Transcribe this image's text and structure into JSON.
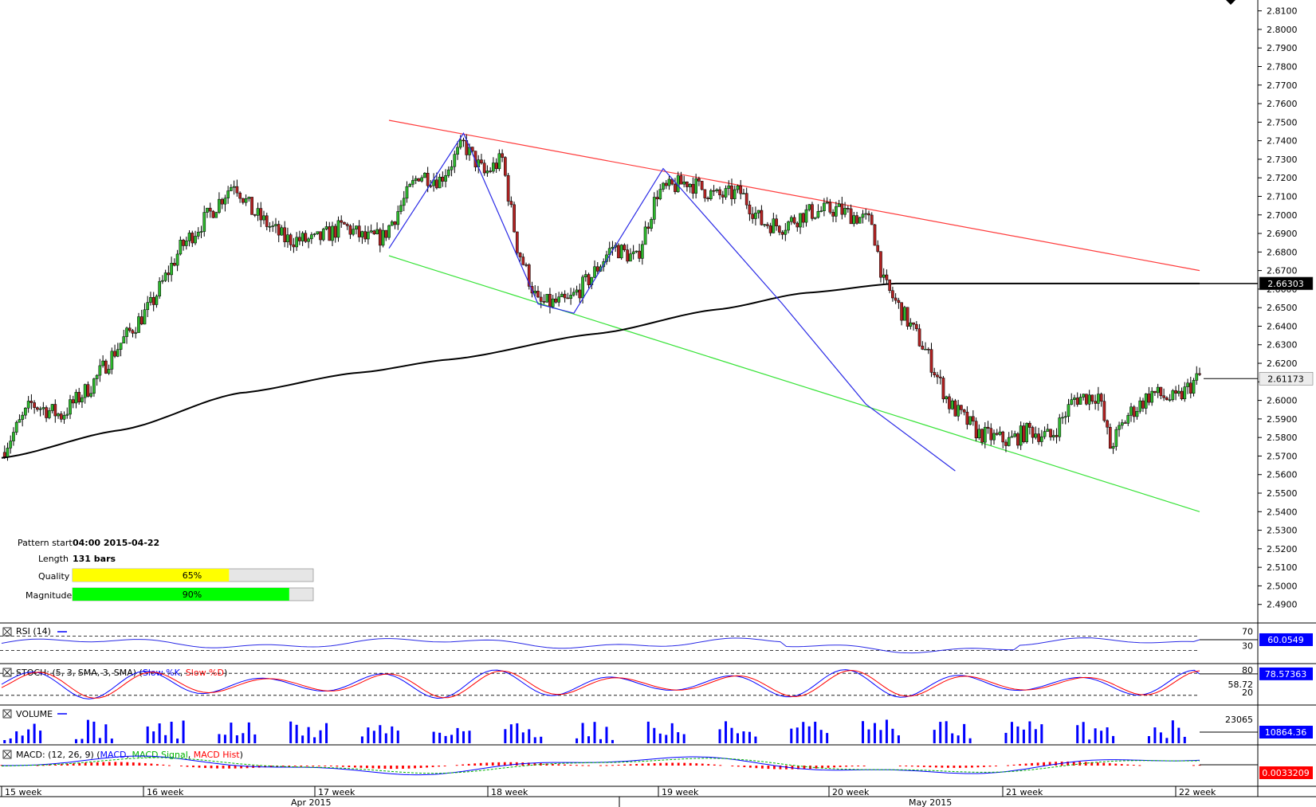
{
  "chart_data": {
    "type": "candlestick",
    "main_axis": {
      "ylim": [
        2.48,
        2.815
      ],
      "tick_step": 0.01,
      "tick_start": 2.49,
      "tick_end": 2.81
    },
    "series_note": "Price candles, black moving average, red upper trendline, green lower trendline, blue zigzag pattern",
    "price_tags": [
      {
        "value": 2.66303,
        "label": "2.66303",
        "style": "dark"
      },
      {
        "value": 2.61173,
        "label": "2.61173",
        "style": "light"
      }
    ],
    "week_labels": [
      "15 week",
      "16 week",
      "17 week",
      "18 week",
      "19 week",
      "20 week",
      "21 week",
      "22 week"
    ],
    "month_labels": [
      "Apr 2015",
      "May 2015"
    ],
    "moving_average": [
      [
        0,
        2.569
      ],
      [
        40,
        2.584
      ],
      [
        80,
        2.604
      ],
      [
        120,
        2.615
      ],
      [
        150,
        2.622
      ],
      [
        200,
        2.636
      ],
      [
        240,
        2.649
      ],
      [
        270,
        2.658
      ],
      [
        300,
        2.663
      ],
      [
        340,
        2.663
      ],
      [
        402,
        2.663
      ]
    ],
    "upper_trendline": [
      [
        130,
        2.751
      ],
      [
        402,
        2.67
      ]
    ],
    "lower_trendline": [
      [
        130,
        2.678
      ],
      [
        402,
        2.54
      ]
    ],
    "zigzag": [
      [
        130,
        2.682
      ],
      [
        155,
        2.744
      ],
      [
        180,
        2.652
      ],
      [
        192,
        2.647
      ],
      [
        222,
        2.725
      ],
      [
        262,
        2.652
      ],
      [
        290,
        2.598
      ],
      [
        320,
        2.562
      ]
    ],
    "candles_anchor": [
      [
        0,
        2.572
      ],
      [
        10,
        2.598
      ],
      [
        20,
        2.592
      ],
      [
        30,
        2.608
      ],
      [
        40,
        2.631
      ],
      [
        50,
        2.651
      ],
      [
        60,
        2.682
      ],
      [
        70,
        2.701
      ],
      [
        78,
        2.718
      ],
      [
        84,
        2.702
      ],
      [
        95,
        2.687
      ],
      [
        105,
        2.686
      ],
      [
        115,
        2.694
      ],
      [
        122,
        2.687
      ],
      [
        128,
        2.688
      ],
      [
        140,
        2.722
      ],
      [
        147,
        2.719
      ],
      [
        155,
        2.738
      ],
      [
        162,
        2.722
      ],
      [
        168,
        2.73
      ],
      [
        173,
        2.683
      ],
      [
        180,
        2.652
      ],
      [
        190,
        2.653
      ],
      [
        198,
        2.667
      ],
      [
        205,
        2.683
      ],
      [
        213,
        2.676
      ],
      [
        220,
        2.712
      ],
      [
        230,
        2.718
      ],
      [
        240,
        2.71
      ],
      [
        248,
        2.712
      ],
      [
        255,
        2.696
      ],
      [
        262,
        2.694
      ],
      [
        270,
        2.701
      ],
      [
        280,
        2.703
      ],
      [
        292,
        2.696
      ],
      [
        296,
        2.663
      ],
      [
        302,
        2.648
      ],
      [
        310,
        2.627
      ],
      [
        318,
        2.598
      ],
      [
        328,
        2.582
      ],
      [
        338,
        2.578
      ],
      [
        345,
        2.584
      ],
      [
        352,
        2.58
      ],
      [
        360,
        2.601
      ],
      [
        368,
        2.603
      ],
      [
        372,
        2.575
      ],
      [
        378,
        2.592
      ],
      [
        386,
        2.604
      ],
      [
        394,
        2.6
      ],
      [
        402,
        2.613
      ]
    ],
    "pattern_info": {
      "pattern_start_label": "Pattern start",
      "pattern_start_value": "04:00 2015-04-22",
      "length_label": "Length",
      "length_value": "131 bars",
      "quality_label": "Quality",
      "quality_value": 65,
      "quality_text": "65%",
      "magnitude_label": "Magnitude",
      "magnitude_value": 90,
      "magnitude_text": "90%"
    },
    "indicators": {
      "rsi": {
        "title": "RSI (14)",
        "levels": [
          {
            "value": 70,
            "label": "70"
          },
          {
            "value": 30,
            "label": "30"
          }
        ],
        "last_value": "60.0549",
        "last": 60.05
      },
      "stoch": {
        "title_prefix": "STOCH: (5, 3, SMA, 3, SMA) (",
        "k_name": "Slow %K",
        "separator": ", ",
        "d_name": "Slow %D",
        "title_suffix": ")",
        "levels": [
          {
            "value": 80,
            "label": "80"
          },
          {
            "value": 20,
            "label": "20"
          }
        ],
        "extra_label": "58.72",
        "last_value": "78.57363",
        "last": 78.57
      },
      "volume": {
        "title": "VOLUME",
        "top_label": "23065",
        "last_value": "10864.36"
      },
      "macd": {
        "title_prefix": "MACD: (12, 26, 9) (",
        "macd_name": "MACD",
        "signal_name": "MACD Signal",
        "hist_name": "MACD Hist",
        "title_suffix": ")",
        "last_value": "0.0033209"
      }
    },
    "colors": {
      "up": "#2db82d",
      "down": "#b22222",
      "ma": "#000000",
      "upper_trend": "#ff3b3b",
      "lower_trend": "#39e339",
      "zigzag": "#2a2ae6",
      "quality": "#ffff00",
      "magnitude": "#00ff00",
      "volume": "#0000ff",
      "tag_blue": "#0000ff",
      "macd": "#0000ff",
      "signal": "#00b300",
      "hist": "#ff0000"
    }
  }
}
